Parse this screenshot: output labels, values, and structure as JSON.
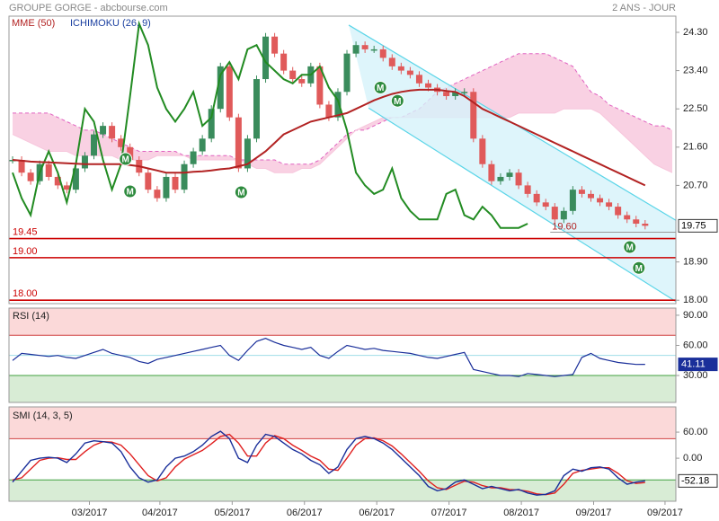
{
  "chart_data": {
    "type": "candlestick",
    "title": "GROUPE GORGE - abcbourse.com",
    "subtitle": "2 ANS - JOUR",
    "xlim": [
      -0.4,
      73.4
    ],
    "xticks": [
      {
        "value": 8.5,
        "label": "03/2017"
      },
      {
        "value": 16.3,
        "label": "04/2017"
      },
      {
        "value": 24.3,
        "label": "05/2017"
      },
      {
        "value": 32.3,
        "label": "06/2017"
      },
      {
        "value": 40.3,
        "label": "06/2017"
      },
      {
        "value": 48.3,
        "label": "07/2017"
      },
      {
        "value": 56.3,
        "label": "08/2017"
      },
      {
        "value": 64.3,
        "label": "09/2017"
      },
      {
        "value": 72.2,
        "label": "09/2017"
      }
    ],
    "ylim": [
      17.92,
      24.68
    ],
    "yticks": [
      {
        "value": 24.3,
        "label": "24.30"
      },
      {
        "value": 23.4,
        "label": "23.40"
      },
      {
        "value": 22.5,
        "label": "22.50"
      },
      {
        "value": 21.6,
        "label": "21.60"
      },
      {
        "value": 20.7,
        "label": "20.70"
      },
      {
        "value": 18.9,
        "label": "18.90"
      },
      {
        "value": 18,
        "label": "18.00"
      }
    ],
    "price": {
      "up_color": "#3a8c5c",
      "down_color": "#e05a5a",
      "values": [
        21.3,
        21.0,
        20.8,
        21.2,
        20.9,
        20.7,
        20.6,
        21.1,
        21.4,
        21.9,
        22.1,
        21.8,
        21.6,
        21.3,
        21.0,
        20.6,
        20.4,
        20.9,
        20.6,
        21.2,
        21.5,
        21.8,
        22.5,
        23.5,
        22.3,
        21.1,
        21.8,
        23.2,
        24.2,
        23.8,
        23.4,
        23.2,
        23.1,
        23.5,
        22.6,
        22.3,
        22.9,
        23.8,
        24.0,
        23.9,
        23.9,
        23.7,
        23.5,
        23.4,
        23.3,
        23.1,
        23.0,
        22.9,
        22.8,
        22.9,
        22.9,
        21.8,
        21.2,
        20.8,
        20.9,
        21.0,
        20.7,
        20.5,
        20.3,
        20.2,
        19.9,
        20.1,
        20.6,
        20.5,
        20.4,
        20.3,
        20.2,
        20.0,
        19.9,
        19.8,
        19.75
      ]
    },
    "series": [
      {
        "name": "MME (50)",
        "color": "#b22222",
        "values": [
          21.3,
          21.28,
          21.26,
          21.25,
          21.24,
          21.23,
          21.22,
          21.21,
          21.2,
          21.2,
          21.2,
          21.2,
          21.2,
          21.18,
          21.15,
          21.1,
          21.05,
          21.0,
          21.0,
          21.0,
          21.02,
          21.03,
          21.05,
          21.08,
          21.1,
          21.15,
          21.2,
          21.35,
          21.5,
          21.7,
          21.9,
          22.0,
          22.1,
          22.2,
          22.25,
          22.3,
          22.35,
          22.4,
          22.5,
          22.6,
          22.7,
          22.78,
          22.85,
          22.9,
          22.93,
          22.95,
          22.95,
          22.95,
          22.92,
          22.9,
          22.8,
          22.65,
          22.5,
          22.4,
          22.3,
          22.2,
          22.1,
          22.0,
          21.9,
          21.8,
          21.7,
          21.6,
          21.5,
          21.4,
          21.3,
          21.2,
          21.1,
          21.0,
          20.9,
          20.8,
          20.7
        ]
      },
      {
        "name": "ICHIMOKU (26, 9)",
        "color": "#1a3fa0",
        "chikou_color": "#228b22",
        "cloud_color": "#f7c6dc",
        "span_color": "#e060c0",
        "chikou": [
          21.0,
          20.4,
          20.0,
          21.0,
          21.5,
          21.0,
          20.3,
          21.2,
          22.5,
          22.2,
          21.3,
          20.6,
          21.2,
          22.8,
          24.5,
          24.0,
          23.0,
          22.5,
          22.2,
          22.5,
          22.9,
          22.1,
          22.3,
          23.3,
          23.6,
          23.2,
          23.9,
          24.0,
          23.6,
          23.4,
          23.2,
          23.1,
          23.3,
          23.3,
          23.5,
          23.0,
          22.7,
          22.0,
          21.0,
          20.7,
          20.5,
          20.6,
          21.1,
          20.4,
          20.1,
          19.9,
          19.9,
          19.9,
          20.5,
          20.6,
          20.0,
          19.9,
          20.2,
          20.0,
          19.7,
          19.7,
          19.7,
          19.8
        ],
        "span_a": [
          22.4,
          22.4,
          22.4,
          22.4,
          22.4,
          22.3,
          22.2,
          22.1,
          22.0,
          22.0,
          21.9,
          21.8,
          21.7,
          21.6,
          21.5,
          21.5,
          21.5,
          21.5,
          21.5,
          21.4,
          21.4,
          21.4,
          21.4,
          21.4,
          21.4,
          21.3,
          21.3,
          21.3,
          21.3,
          21.3,
          21.2,
          21.2,
          21.2,
          21.2,
          21.3,
          21.5,
          21.7,
          21.9,
          22.0,
          22.0,
          22.1,
          22.2,
          22.3,
          22.3,
          22.4,
          22.5,
          22.7,
          22.9,
          23.0,
          23.1,
          23.2,
          23.3,
          23.4,
          23.5,
          23.6,
          23.7,
          23.8,
          23.8,
          23.8,
          23.8,
          23.7,
          23.6,
          23.5,
          23.2,
          22.9,
          22.8,
          22.6,
          22.5,
          22.4,
          22.3,
          22.2,
          22.1,
          22.1,
          22.0
        ],
        "span_b": [
          21.9,
          21.8,
          21.7,
          21.6,
          21.5,
          21.5,
          21.5,
          21.4,
          21.4,
          21.4,
          21.4,
          21.4,
          21.3,
          21.3,
          21.3,
          21.3,
          21.4,
          21.4,
          21.4,
          21.4,
          21.3,
          21.3,
          21.3,
          21.3,
          21.3,
          21.3,
          21.2,
          21.1,
          21.1,
          21.0,
          21.0,
          21.0,
          21.1,
          21.1,
          21.2,
          21.4,
          21.6,
          21.8,
          22.0,
          22.1,
          22.2,
          22.3,
          22.3,
          22.3,
          22.3,
          22.3,
          22.3,
          22.3,
          22.3,
          22.3,
          22.3,
          22.3,
          22.3,
          22.3,
          22.3,
          22.3,
          22.4,
          22.4,
          22.4,
          22.4,
          22.4,
          22.5,
          22.5,
          22.5,
          22.5,
          22.4,
          22.2,
          22.0,
          21.8,
          21.6,
          21.4,
          21.2,
          21.1,
          21.0
        ]
      }
    ],
    "channel": {
      "color": "#5bd5e8",
      "fill": "#d6f3fa",
      "upper": [
        [
          37.2,
          24.47
        ],
        [
          73.4,
          19.88
        ]
      ],
      "lower": [
        [
          39.4,
          22.52
        ],
        [
          73.4,
          17.97
        ]
      ]
    },
    "markers": [
      {
        "x": 12.5,
        "price": 21.32,
        "label": "M"
      },
      {
        "x": 13.0,
        "price": 20.56,
        "label": "M"
      },
      {
        "x": 25.3,
        "price": 20.54,
        "label": "M"
      },
      {
        "x": 40.7,
        "price": 23.0,
        "label": "M"
      },
      {
        "x": 42.6,
        "price": 22.69,
        "label": "M"
      },
      {
        "x": 68.3,
        "price": 19.25,
        "label": "M"
      },
      {
        "x": 69.3,
        "price": 18.76,
        "label": "M"
      }
    ],
    "marker_color": "#2e8b3e",
    "levels": [
      {
        "value": 19.45
      },
      {
        "value": 19,
        "label": "19.00"
      },
      {
        "value": 18,
        "label": "18.00"
      }
    ],
    "level_color": "#cc0000",
    "support": {
      "value": 19.6,
      "label": "19.60",
      "from": 59.5
    },
    "rsi": {
      "title": "RSI (14)",
      "color": "#1a2f9a",
      "ylim": [
        3.2,
        97.1
      ],
      "yticks": [
        {
          "value": 90,
          "label": "90.00"
        },
        {
          "value": 60,
          "label": "60.00"
        },
        {
          "value": 30,
          "label": "30.00"
        }
      ],
      "zones": [
        70,
        30
      ],
      "midline": 50,
      "values": [
        45,
        52,
        51,
        50,
        49,
        50,
        48,
        47,
        50,
        53,
        56,
        52,
        50,
        48,
        44,
        42,
        46,
        48,
        50,
        52,
        54,
        56,
        58,
        60,
        50,
        45,
        55,
        64,
        67,
        63,
        60,
        58,
        56,
        58,
        50,
        47,
        54,
        60,
        58,
        56,
        57,
        55,
        54,
        53,
        52,
        50,
        48,
        47,
        49,
        51,
        53,
        36,
        34,
        32,
        30,
        30,
        29,
        32,
        31,
        30,
        29,
        30,
        31,
        48,
        52,
        47,
        45,
        43,
        42,
        41,
        41.11
      ]
    },
    "smi": {
      "title": "SMI (14, 3, 5)",
      "color": "#1a2f9a",
      "signal_color": "#e02020",
      "ylim": [
        -99,
        118
      ],
      "yticks": [
        {
          "value": 60,
          "label": "60.00"
        },
        {
          "value": 0,
          "label": "0.00"
        }
      ],
      "zones": [
        45,
        -50
      ],
      "values": [
        -55,
        -30,
        -5,
        0,
        2,
        0,
        -10,
        10,
        35,
        40,
        38,
        35,
        15,
        -20,
        -45,
        -55,
        -50,
        -20,
        0,
        5,
        15,
        30,
        50,
        62,
        45,
        0,
        -10,
        30,
        55,
        50,
        35,
        20,
        10,
        -5,
        -15,
        -35,
        -20,
        20,
        45,
        50,
        45,
        35,
        20,
        0,
        -20,
        -40,
        -65,
        -75,
        -70,
        -55,
        -50,
        -60,
        -70,
        -65,
        -70,
        -75,
        -72,
        -80,
        -85,
        -83,
        -75,
        -40,
        -25,
        -30,
        -22,
        -20,
        -25,
        -45,
        -60,
        -55,
        -52.18
      ],
      "signal": [
        -50,
        -45,
        -25,
        -5,
        0,
        1,
        -3,
        -3,
        15,
        30,
        38,
        37,
        30,
        10,
        -15,
        -40,
        -52,
        -45,
        -20,
        -2,
        8,
        18,
        33,
        50,
        55,
        35,
        5,
        5,
        35,
        52,
        45,
        30,
        18,
        5,
        -5,
        -25,
        -28,
        0,
        30,
        45,
        47,
        40,
        28,
        10,
        -10,
        -30,
        -52,
        -68,
        -72,
        -62,
        -53,
        -55,
        -63,
        -68,
        -68,
        -72,
        -73,
        -76,
        -82,
        -84,
        -80,
        -60,
        -35,
        -28,
        -25,
        -22,
        -22,
        -35,
        -52,
        -58,
        -56
      ]
    }
  }
}
